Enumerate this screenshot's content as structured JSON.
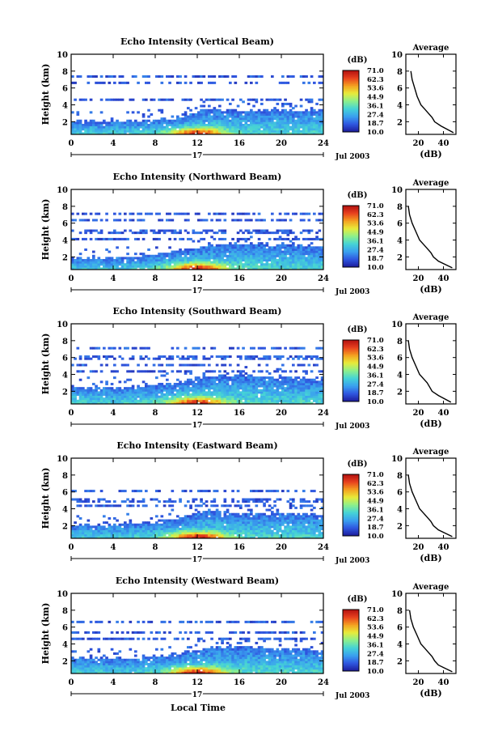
{
  "figure": {
    "xlabel": "Local Time",
    "date_label": "Jul 2003",
    "day_label": "17",
    "colorbar_title": "(dB)",
    "colorbar_ticks": [
      "71.0",
      "62.3",
      "53.6",
      "44.9",
      "36.1",
      "27.4",
      "18.7",
      "10.0"
    ],
    "colormap": [
      "#1c1c9a",
      "#2f56e0",
      "#3aa0ef",
      "#45d3d6",
      "#8cf08c",
      "#e8ec3a",
      "#f4a020",
      "#e8401e",
      "#b01010"
    ]
  },
  "chart_data": [
    {
      "type": "heatmap",
      "title": "Echo Intensity (Vertical Beam)",
      "ylabel": "Height (km)",
      "xlim": [
        0,
        24
      ],
      "ylim": [
        0.5,
        10
      ],
      "xticks": [
        0,
        4,
        8,
        12,
        16,
        20,
        24
      ],
      "yticks": [
        2,
        4,
        6,
        8,
        10
      ],
      "boundary_layer_top_km": [
        [
          0,
          2.0
        ],
        [
          6,
          2.1
        ],
        [
          10,
          2.4
        ],
        [
          13,
          3.6
        ],
        [
          16,
          3.3
        ],
        [
          20,
          3.4
        ],
        [
          24,
          3.4
        ]
      ],
      "sparse_layers_km": [
        4.6,
        6.6,
        7.4
      ],
      "peak_time_hr": 12,
      "peak_dB": 71,
      "average_profile": {
        "title": "Average",
        "xlabel": "(dB)",
        "xticks": [
          20,
          40
        ],
        "xlim": [
          10,
          50
        ],
        "height_km": [
          0.7,
          1.5,
          2.0,
          2.5,
          3.0,
          3.5,
          4.0,
          5.0,
          6.0,
          7.0,
          8.0
        ],
        "dB": [
          48,
          38,
          33,
          31,
          28,
          25,
          22,
          19,
          17,
          15,
          14
        ]
      }
    },
    {
      "type": "heatmap",
      "title": "Echo Intensity (Northward Beam)",
      "ylabel": "Height (km)",
      "xlim": [
        0,
        24
      ],
      "ylim": [
        0.5,
        10
      ],
      "xticks": [
        0,
        4,
        8,
        12,
        16,
        20,
        24
      ],
      "yticks": [
        2,
        4,
        6,
        8,
        10
      ],
      "boundary_layer_top_km": [
        [
          0,
          1.8
        ],
        [
          6,
          2.0
        ],
        [
          10,
          2.6
        ],
        [
          13,
          3.4
        ],
        [
          16,
          3.6
        ],
        [
          20,
          3.4
        ],
        [
          24,
          3.3
        ]
      ],
      "sparse_layers_km": [
        4.2,
        5.0,
        6.4,
        7.2
      ],
      "peak_time_hr": 12,
      "peak_dB": 71,
      "average_profile": {
        "title": "Average",
        "xlabel": "(dB)",
        "xticks": [
          20,
          40
        ],
        "xlim": [
          10,
          50
        ],
        "height_km": [
          0.7,
          1.5,
          2.0,
          2.5,
          3.0,
          3.5,
          4.0,
          5.0,
          6.0,
          7.0,
          8.0
        ],
        "dB": [
          47,
          36,
          32,
          30,
          27,
          24,
          21,
          18,
          15,
          13,
          12
        ]
      }
    },
    {
      "type": "heatmap",
      "title": "Echo Intensity (Southward Beam)",
      "ylabel": "Height (km)",
      "xlim": [
        0,
        24
      ],
      "ylim": [
        0.5,
        10
      ],
      "xticks": [
        0,
        4,
        8,
        12,
        16,
        20,
        24
      ],
      "yticks": [
        2,
        4,
        6,
        8,
        10
      ],
      "boundary_layer_top_km": [
        [
          0,
          2.6
        ],
        [
          6,
          2.4
        ],
        [
          10,
          3.0
        ],
        [
          13,
          3.8
        ],
        [
          16,
          4.0
        ],
        [
          20,
          3.6
        ],
        [
          24,
          3.4
        ]
      ],
      "sparse_layers_km": [
        4.4,
        5.2,
        6.0,
        7.2
      ],
      "peak_time_hr": 12,
      "peak_dB": 71,
      "average_profile": {
        "title": "Average",
        "xlabel": "(dB)",
        "xticks": [
          20,
          40
        ],
        "xlim": [
          10,
          50
        ],
        "height_km": [
          0.7,
          1.5,
          2.0,
          2.5,
          3.0,
          3.5,
          4.0,
          5.0,
          6.0,
          7.0,
          8.0
        ],
        "dB": [
          46,
          36,
          31,
          29,
          27,
          24,
          21,
          18,
          15,
          13,
          12
        ]
      }
    },
    {
      "type": "heatmap",
      "title": "Echo Intensity (Eastward Beam)",
      "ylabel": "Height (km)",
      "xlim": [
        0,
        24
      ],
      "ylim": [
        0.5,
        10
      ],
      "xticks": [
        0,
        4,
        8,
        12,
        16,
        20,
        24
      ],
      "yticks": [
        2,
        4,
        6,
        8,
        10
      ],
      "boundary_layer_top_km": [
        [
          0,
          2.0
        ],
        [
          6,
          2.2
        ],
        [
          10,
          2.8
        ],
        [
          13,
          3.8
        ],
        [
          16,
          3.4
        ],
        [
          20,
          3.4
        ],
        [
          24,
          3.3
        ]
      ],
      "sparse_layers_km": [
        4.4,
        5.0,
        6.2
      ],
      "peak_time_hr": 12,
      "peak_dB": 71,
      "average_profile": {
        "title": "Average",
        "xlabel": "(dB)",
        "xticks": [
          20,
          40
        ],
        "xlim": [
          10,
          50
        ],
        "height_km": [
          0.7,
          1.5,
          2.0,
          2.5,
          3.0,
          3.5,
          4.0,
          5.0,
          6.0,
          7.0,
          8.0
        ],
        "dB": [
          47,
          36,
          32,
          30,
          27,
          24,
          21,
          18,
          15,
          13,
          12
        ]
      }
    },
    {
      "type": "heatmap",
      "title": "Echo Intensity (Westward Beam)",
      "ylabel": "Height (km)",
      "xlim": [
        0,
        24
      ],
      "ylim": [
        0.5,
        10
      ],
      "xticks": [
        0,
        4,
        8,
        12,
        16,
        20,
        24
      ],
      "yticks": [
        2,
        4,
        6,
        8,
        10
      ],
      "boundary_layer_top_km": [
        [
          0,
          2.3
        ],
        [
          6,
          2.3
        ],
        [
          10,
          2.8
        ],
        [
          13,
          3.6
        ],
        [
          16,
          3.8
        ],
        [
          20,
          3.4
        ],
        [
          24,
          3.2
        ]
      ],
      "sparse_layers_km": [
        4.6,
        5.4,
        6.6
      ],
      "peak_time_hr": 12,
      "peak_dB": 71,
      "average_profile": {
        "title": "Average",
        "xlabel": "(dB)",
        "xticks": [
          20,
          40
        ],
        "xlim": [
          10,
          50
        ],
        "height_km": [
          0.7,
          1.5,
          2.0,
          2.5,
          3.0,
          3.5,
          4.0,
          5.0,
          6.0,
          7.0,
          8.0
        ],
        "dB": [
          47,
          36,
          33,
          31,
          28,
          25,
          22,
          19,
          16,
          14,
          13
        ]
      }
    }
  ]
}
